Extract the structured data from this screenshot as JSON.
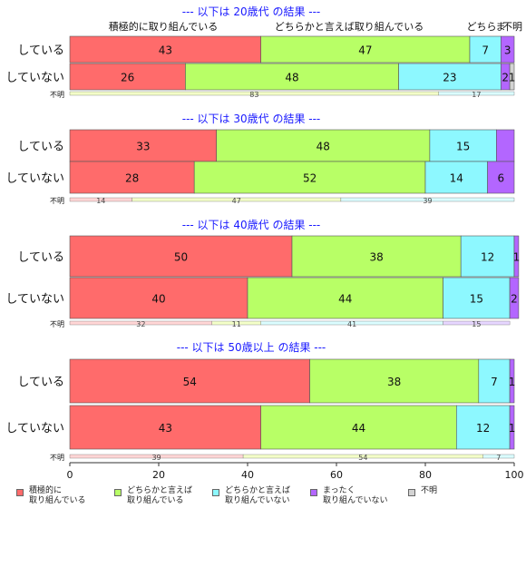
{
  "chart_data": {
    "type": "bar",
    "orientation": "horizontal",
    "stacked": true,
    "xlim": [
      0,
      100
    ],
    "xticks": [
      0,
      20,
      40,
      60,
      80,
      100
    ],
    "categories_legend": [
      "積極的に\n取り組んでいる",
      "どちらかと言えば\n取り組んでいる",
      "どちらかと言えば\n取り組んでいない",
      "まったく\n取り組んでいない",
      "不明"
    ],
    "colors": [
      "#ff6b6b",
      "#b8ff66",
      "#8df8ff",
      "#b366ff",
      "#d3d3d3"
    ],
    "top_labels": [
      "積極的に取り組んでいる",
      "どちらかと言えば取り組んでいる",
      "どちら",
      "ま",
      "不明"
    ],
    "groups": [
      {
        "title": "--- 以下は 20歳代 の結果 ---",
        "rows": [
          {
            "label": "している",
            "values": [
              43,
              47,
              7,
              3,
              0
            ],
            "value_labels": [
              "43",
              "47",
              "7",
              "3",
              ""
            ]
          },
          {
            "label": "していない",
            "values": [
              26,
              48,
              23,
              2,
              1
            ],
            "value_labels": [
              "26",
              "48",
              "23",
              "2",
              "1"
            ]
          }
        ],
        "unknown": {
          "label": "不明",
          "values": [
            0,
            83,
            17,
            0,
            0
          ],
          "value_labels": [
            "",
            "83",
            "17",
            "",
            ""
          ]
        }
      },
      {
        "title": "--- 以下は 30歳代 の結果 ---",
        "rows": [
          {
            "label": "している",
            "values": [
              33,
              48,
              15,
              4,
              0
            ],
            "value_labels": [
              "33",
              "48",
              "15",
              "",
              ""
            ]
          },
          {
            "label": "していない",
            "values": [
              28,
              52,
              14,
              6,
              0
            ],
            "value_labels": [
              "28",
              "52",
              "14",
              "6",
              ""
            ]
          }
        ],
        "unknown": {
          "label": "不明",
          "values": [
            14,
            47,
            39,
            0,
            0
          ],
          "value_labels": [
            "14",
            "47",
            "39",
            "",
            ""
          ]
        }
      },
      {
        "title": "--- 以下は 40歳代 の結果 ---",
        "rows": [
          {
            "label": "している",
            "values": [
              50,
              38,
              12,
              1,
              0
            ],
            "value_labels": [
              "50",
              "38",
              "12",
              "1",
              ""
            ]
          },
          {
            "label": "していない",
            "values": [
              40,
              44,
              15,
              2,
              0
            ],
            "value_labels": [
              "40",
              "44",
              "15",
              "2",
              ""
            ]
          }
        ],
        "unknown": {
          "label": "不明",
          "values": [
            32,
            11,
            41,
            15,
            0
          ],
          "value_labels": [
            "32",
            "11",
            "41",
            "15",
            ""
          ]
        }
      },
      {
        "title": "--- 以下は 50歳以上 の結果 ---",
        "rows": [
          {
            "label": "している",
            "values": [
              54,
              38,
              7,
              1,
              0
            ],
            "value_labels": [
              "54",
              "38",
              "7",
              "1",
              ""
            ]
          },
          {
            "label": "していない",
            "values": [
              43,
              44,
              12,
              1,
              0
            ],
            "value_labels": [
              "43",
              "44",
              "12",
              "1",
              ""
            ]
          }
        ],
        "unknown": {
          "label": "不明",
          "values": [
            39,
            54,
            7,
            0,
            0
          ],
          "value_labels": [
            "39",
            "54",
            "7",
            "",
            ""
          ]
        }
      }
    ]
  }
}
